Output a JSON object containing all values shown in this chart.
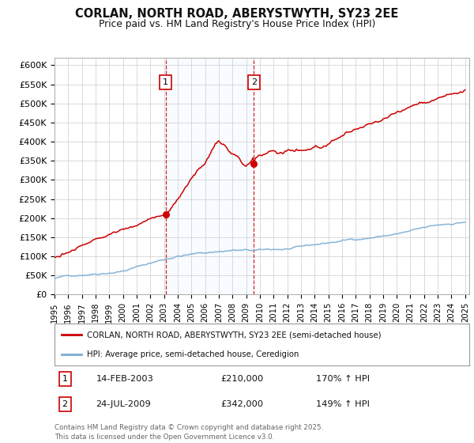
{
  "title": "CORLAN, NORTH ROAD, ABERYSTWYTH, SY23 2EE",
  "subtitle": "Price paid vs. HM Land Registry's House Price Index (HPI)",
  "ylim": [
    0,
    620000
  ],
  "yticks": [
    0,
    50000,
    100000,
    150000,
    200000,
    250000,
    300000,
    350000,
    400000,
    450000,
    500000,
    550000,
    600000
  ],
  "ytick_labels": [
    "£0",
    "£50K",
    "£100K",
    "£150K",
    "£200K",
    "£250K",
    "£300K",
    "£350K",
    "£400K",
    "£450K",
    "£500K",
    "£550K",
    "£600K"
  ],
  "sale1_date": 2003.12,
  "sale1_price": 210000,
  "sale1_label": "1",
  "sale2_date": 2009.56,
  "sale2_price": 342000,
  "sale2_label": "2",
  "red_color": "#cc0000",
  "blue_color": "#7aadd4",
  "shade_color": "#ddeeff",
  "legend_line1": "CORLAN, NORTH ROAD, ABERYSTWYTH, SY23 2EE (semi-detached house)",
  "legend_line2": "HPI: Average price, semi-detached house, Ceredigion",
  "annotation1_date": "14-FEB-2003",
  "annotation1_price": "£210,000",
  "annotation1_hpi": "170% ↑ HPI",
  "annotation2_date": "24-JUL-2009",
  "annotation2_price": "£342,000",
  "annotation2_hpi": "149% ↑ HPI",
  "footer": "Contains HM Land Registry data © Crown copyright and database right 2025.\nThis data is licensed under the Open Government Licence v3.0.",
  "background_color": "#ffffff",
  "grid_color": "#cccccc"
}
